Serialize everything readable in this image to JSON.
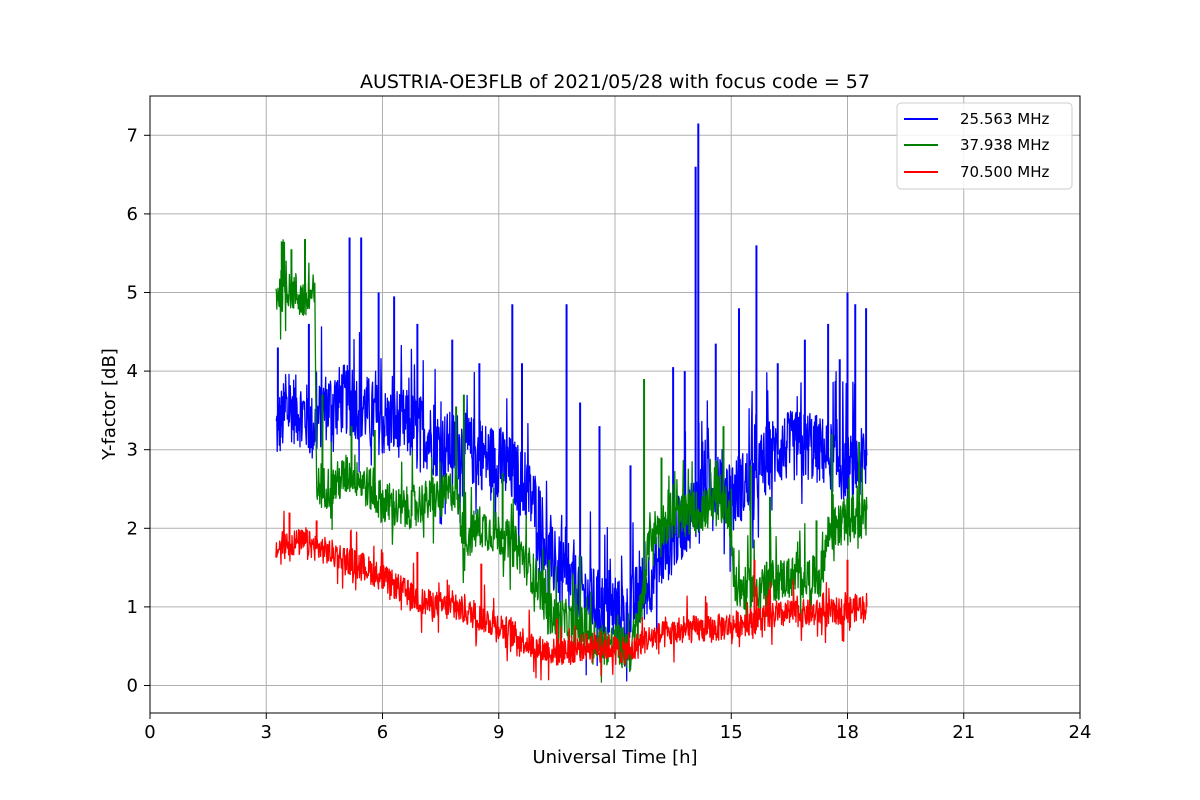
{
  "chart_data": {
    "type": "line",
    "title": "AUSTRIA-OE3FLB of 2021/05/28 with focus code = 57",
    "xlabel": "Universal Time [h]",
    "ylabel": "Y-factor [dB]",
    "xlim": [
      0,
      24
    ],
    "ylim": [
      -0.35,
      7.5
    ],
    "xticks": [
      0,
      3,
      6,
      9,
      12,
      15,
      18,
      21,
      24
    ],
    "yticks": [
      0,
      1,
      2,
      3,
      4,
      5,
      6,
      7
    ],
    "grid": true,
    "legend_position": "top-right",
    "series": [
      {
        "name": "25.563 MHz",
        "color": "#0000ff",
        "x": [
          3.25,
          3.6,
          4.0,
          4.2,
          4.5,
          5.0,
          5.5,
          6.0,
          6.5,
          7.0,
          7.5,
          8.0,
          8.5,
          9.0,
          9.5,
          10.0,
          10.3,
          10.7,
          11.0,
          11.5,
          12.0,
          12.3,
          12.6,
          12.9,
          13.2,
          13.6,
          14.0,
          14.1,
          14.3,
          14.7,
          15.0,
          15.6,
          16.0,
          16.5,
          17.0,
          17.5,
          18.0,
          18.5
        ],
        "y": [
          3.2,
          3.5,
          3.4,
          3.2,
          3.5,
          3.6,
          3.5,
          3.3,
          3.3,
          3.2,
          3.0,
          3.0,
          2.9,
          2.8,
          2.6,
          2.2,
          1.6,
          1.3,
          1.2,
          1.0,
          0.9,
          0.8,
          1.1,
          1.3,
          1.6,
          1.9,
          2.2,
          2.3,
          2.5,
          2.6,
          2.4,
          2.6,
          2.9,
          3.0,
          3.0,
          2.9,
          2.7,
          2.8
        ],
        "peaks": [
          {
            "x": 3.3,
            "y": 4.3
          },
          {
            "x": 4.1,
            "y": 4.6
          },
          {
            "x": 5.15,
            "y": 5.7
          },
          {
            "x": 5.45,
            "y": 5.7
          },
          {
            "x": 5.9,
            "y": 5.0
          },
          {
            "x": 6.3,
            "y": 4.95
          },
          {
            "x": 6.9,
            "y": 4.6
          },
          {
            "x": 7.8,
            "y": 4.4
          },
          {
            "x": 8.5,
            "y": 4.1
          },
          {
            "x": 9.35,
            "y": 4.85
          },
          {
            "x": 9.6,
            "y": 4.1
          },
          {
            "x": 10.75,
            "y": 4.85
          },
          {
            "x": 11.1,
            "y": 3.6
          },
          {
            "x": 11.6,
            "y": 3.3
          },
          {
            "x": 12.4,
            "y": 2.8
          },
          {
            "x": 13.5,
            "y": 4.05
          },
          {
            "x": 13.8,
            "y": 4.0
          },
          {
            "x": 14.08,
            "y": 6.6
          },
          {
            "x": 14.15,
            "y": 7.15
          },
          {
            "x": 14.6,
            "y": 4.35
          },
          {
            "x": 15.2,
            "y": 4.8
          },
          {
            "x": 15.65,
            "y": 5.6
          },
          {
            "x": 16.2,
            "y": 4.1
          },
          {
            "x": 16.9,
            "y": 4.4
          },
          {
            "x": 17.5,
            "y": 4.6
          },
          {
            "x": 17.8,
            "y": 4.15
          },
          {
            "x": 18.0,
            "y": 5.0
          },
          {
            "x": 18.2,
            "y": 4.85
          },
          {
            "x": 18.48,
            "y": 4.8
          }
        ]
      },
      {
        "name": "37.938 MHz",
        "color": "#008000",
        "x": [
          3.25,
          3.6,
          4.0,
          4.25,
          4.3,
          4.7,
          5.2,
          5.5,
          6.0,
          6.5,
          7.0,
          7.5,
          7.9,
          8.1,
          8.5,
          9.0,
          9.5,
          10.0,
          10.3,
          10.7,
          11.2,
          11.7,
          12.0,
          12.4,
          12.7,
          12.9,
          13.3,
          13.8,
          14.3,
          14.8,
          14.95,
          15.1,
          15.5,
          16.0,
          16.5,
          17.0,
          17.3,
          17.5,
          18.0,
          18.5
        ],
        "y": [
          4.95,
          5.05,
          4.85,
          4.95,
          2.5,
          2.5,
          2.7,
          2.55,
          2.3,
          2.2,
          2.3,
          2.35,
          2.5,
          1.8,
          2.0,
          1.9,
          1.7,
          1.3,
          0.9,
          0.8,
          0.7,
          0.5,
          0.5,
          0.4,
          1.0,
          1.9,
          2.05,
          2.15,
          2.2,
          2.3,
          2.2,
          1.2,
          1.2,
          1.3,
          1.35,
          1.35,
          1.35,
          1.9,
          2.1,
          2.1
        ],
        "peaks": [
          {
            "x": 3.4,
            "y": 5.65
          },
          {
            "x": 3.65,
            "y": 5.55
          },
          {
            "x": 4.0,
            "y": 5.68
          },
          {
            "x": 4.45,
            "y": 3.7
          },
          {
            "x": 5.2,
            "y": 3.3
          },
          {
            "x": 5.8,
            "y": 3.25
          },
          {
            "x": 7.9,
            "y": 3.55
          },
          {
            "x": 8.1,
            "y": 3.7
          },
          {
            "x": 9.1,
            "y": 2.7
          },
          {
            "x": 10.3,
            "y": 1.6
          },
          {
            "x": 11.1,
            "y": 1.65
          },
          {
            "x": 12.75,
            "y": 3.9
          },
          {
            "x": 13.2,
            "y": 2.9
          },
          {
            "x": 14.8,
            "y": 3.3
          },
          {
            "x": 15.5,
            "y": 2.8
          },
          {
            "x": 16.0,
            "y": 2.4
          },
          {
            "x": 17.2,
            "y": 2.1
          },
          {
            "x": 17.6,
            "y": 3.2
          },
          {
            "x": 18.3,
            "y": 3.1
          }
        ]
      },
      {
        "name": "70.500 MHz",
        "color": "#ff0000",
        "x": [
          3.25,
          3.6,
          4.0,
          4.5,
          5.0,
          5.5,
          6.0,
          6.5,
          7.0,
          7.5,
          8.0,
          8.5,
          9.0,
          9.5,
          10.0,
          10.5,
          11.0,
          11.5,
          12.0,
          12.4,
          12.7,
          13.0,
          13.5,
          14.0,
          14.5,
          15.0,
          15.5,
          16.0,
          16.5,
          17.0,
          17.5,
          18.0,
          18.5
        ],
        "y": [
          1.7,
          1.8,
          1.8,
          1.7,
          1.6,
          1.5,
          1.35,
          1.2,
          1.05,
          1.0,
          0.95,
          0.85,
          0.75,
          0.6,
          0.45,
          0.4,
          0.45,
          0.5,
          0.45,
          0.4,
          0.55,
          0.6,
          0.65,
          0.7,
          0.7,
          0.75,
          0.8,
          0.85,
          0.9,
          0.9,
          0.9,
          0.95,
          1.0
        ],
        "peaks": [
          {
            "x": 3.6,
            "y": 2.2
          },
          {
            "x": 4.3,
            "y": 2.1
          },
          {
            "x": 6.9,
            "y": 1.7
          },
          {
            "x": 8.55,
            "y": 1.55
          },
          {
            "x": 10.5,
            "y": 0.85
          },
          {
            "x": 15.6,
            "y": 1.6
          },
          {
            "x": 18.0,
            "y": 1.6
          }
        ]
      }
    ]
  }
}
